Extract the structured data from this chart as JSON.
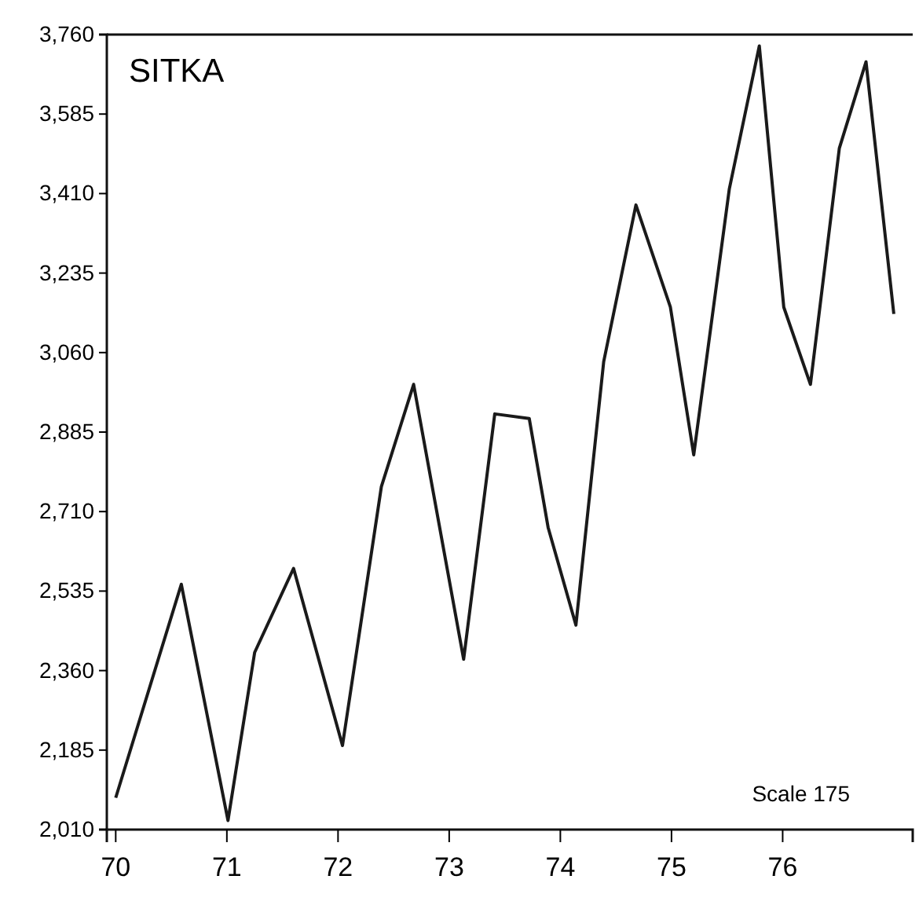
{
  "chart_data": {
    "type": "line",
    "title": "SITKA",
    "annotations": [
      "Scale 175"
    ],
    "x": [
      70.0,
      70.59,
      71.01,
      71.25,
      71.6,
      72.04,
      72.39,
      72.68,
      73.13,
      73.41,
      73.72,
      73.89,
      74.14,
      74.39,
      74.68,
      74.99,
      75.2,
      75.52,
      75.79,
      76.01,
      76.25,
      76.51,
      76.75,
      77.0
    ],
    "series": [
      {
        "color": "#1a1a1a",
        "values": [
          2080,
          2550,
          2030,
          2400,
          2585,
          2195,
          2765,
          2990,
          2385,
          2925,
          2915,
          2675,
          2460,
          3040,
          3385,
          3160,
          2835,
          3420,
          3735,
          3160,
          2990,
          3510,
          3700,
          3145
        ]
      }
    ],
    "xlim": [
      69.92,
      77.17
    ],
    "xticks": [
      70,
      71,
      72,
      73,
      74,
      75,
      76
    ],
    "ylim": [
      2010,
      3760
    ],
    "yticks": [
      {
        "value": 2010,
        "label": "2,010"
      },
      {
        "value": 2185,
        "label": "2,185"
      },
      {
        "value": 2360,
        "label": "2,360"
      },
      {
        "value": 2535,
        "label": "2,535"
      },
      {
        "value": 2710,
        "label": "2,710"
      },
      {
        "value": 2885,
        "label": "2,885"
      },
      {
        "value": 3060,
        "label": "3,060"
      },
      {
        "value": 3235,
        "label": "3,235"
      },
      {
        "value": 3410,
        "label": "3,410"
      },
      {
        "value": 3585,
        "label": "3,585"
      },
      {
        "value": 3760,
        "label": "3,760"
      }
    ],
    "marker": "none",
    "line_style": "solid"
  }
}
